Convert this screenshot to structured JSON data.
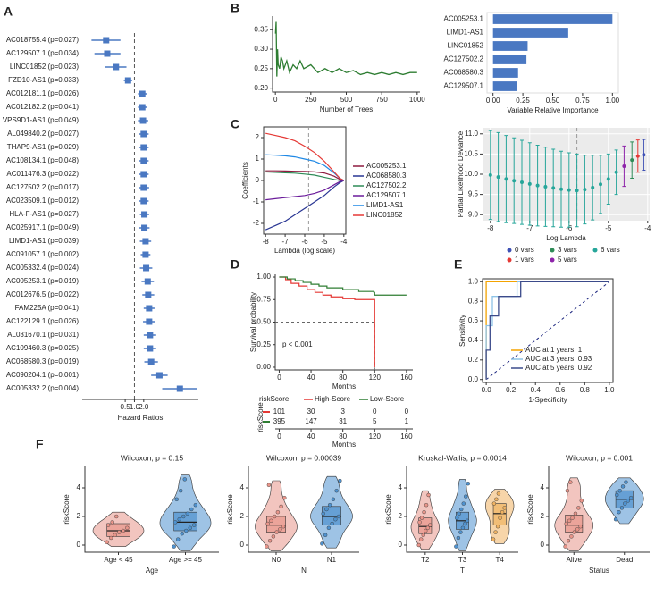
{
  "chart_data": [
    {
      "type": "forest",
      "panel": "A",
      "categories": [
        "AC018755.4 (p=0.027)",
        "AC129507.1 (p=0.034)",
        "LINC01852 (p=0.023)",
        "FZD10-AS1 (p=0.033)",
        "AC012181.1 (p=0.026)",
        "AC012182.2 (p=0.041)",
        "VPS9D1-AS1 (p=0.049)",
        "AL049840.2 (p=0.027)",
        "THAP9-AS1 (p=0.029)",
        "AC108134.1 (p=0.048)",
        "AC011476.3 (p=0.022)",
        "AC127502.2 (p=0.017)",
        "AC023509.1 (p=0.012)",
        "HLA-F-AS1 (p=0.027)",
        "AC025917.1 (p=0.049)",
        "LIMD1-AS1 (p=0.039)",
        "AC091057.1 (p=0.002)",
        "AC005332.4 (p=0.024)",
        "AC005253.1 (p=0.019)",
        "AC012676.5 (p=0.022)",
        "FAM225A (p=0.041)",
        "AC122129.1 (p=0.026)",
        "AL031670.1 (p=0.031)",
        "AC109460.3 (p=0.025)",
        "AC068580.3 (p=0.019)",
        "AC090204.1 (p=0.001)",
        "AC005332.2 (p=0.004)"
      ],
      "values": [
        0.12,
        0.13,
        0.25,
        0.62,
        1.8,
        1.8,
        1.9,
        2.0,
        2.0,
        2.0,
        2.0,
        2.0,
        2.0,
        2.1,
        2.1,
        2.3,
        2.3,
        2.4,
        2.7,
        2.8,
        3.0,
        3.0,
        3.2,
        3.2,
        3.5,
        6.5,
        30
      ],
      "lower": [
        0.04,
        0.05,
        0.11,
        0.45,
        1.3,
        1.3,
        1.3,
        1.4,
        1.4,
        1.4,
        1.4,
        1.4,
        1.4,
        1.5,
        1.4,
        1.5,
        1.6,
        1.5,
        1.7,
        1.8,
        2.0,
        1.9,
        2.0,
        2.0,
        2.1,
        3.5,
        8
      ],
      "upper": [
        0.35,
        0.35,
        0.55,
        0.85,
        2.5,
        2.5,
        2.8,
        2.9,
        2.9,
        2.9,
        2.9,
        3.0,
        2.9,
        3.0,
        3.1,
        3.5,
        3.3,
        3.8,
        4.3,
        4.4,
        4.5,
        4.7,
        5.1,
        5.1,
        5.8,
        12,
        110
      ],
      "color": "#4a78c2",
      "reference": 1,
      "log_x": true,
      "xlim": [
        0.02,
        120
      ],
      "xticks": [
        0.5,
        {
          "value": 1,
          "label": "1.0"
        },
        {
          "value": 2,
          "label": "2.0"
        }
      ],
      "xlabel": "Hazard Ratios"
    },
    {
      "type": "line",
      "panel": "B",
      "x": [
        1,
        5,
        10,
        15,
        20,
        30,
        40,
        50,
        60,
        80,
        100,
        125,
        150,
        175,
        200,
        250,
        300,
        350,
        400,
        450,
        500,
        550,
        600,
        650,
        700,
        750,
        800,
        850,
        900,
        950,
        1000
      ],
      "series": [
        {
          "color": "#2e7d32",
          "values": [
            0.34,
            0.37,
            0.23,
            0.3,
            0.26,
            0.25,
            0.28,
            0.27,
            0.25,
            0.27,
            0.24,
            0.26,
            0.25,
            0.27,
            0.25,
            0.26,
            0.24,
            0.25,
            0.24,
            0.25,
            0.24,
            0.245,
            0.235,
            0.24,
            0.235,
            0.24,
            0.235,
            0.24,
            0.235,
            0.24,
            0.24
          ]
        }
      ],
      "xlim": [
        -20,
        1020
      ],
      "xticks": [
        0,
        250,
        500,
        750,
        1000
      ],
      "ylim": [
        0.19,
        0.385
      ],
      "yticks": [
        {
          "value": 0.2,
          "label": "0.20"
        },
        0.25,
        {
          "value": 0.3,
          "label": "0.30"
        },
        0.35
      ],
      "xlabel": "Number of Trees"
    },
    {
      "type": "barh",
      "categories": [
        "AC005253.1",
        "LIMD1-AS1",
        "LINC01852",
        "AC127502.2",
        "AC068580.3",
        "AC129507.1"
      ],
      "values": [
        1.0,
        0.63,
        0.29,
        0.28,
        0.21,
        0.2
      ],
      "color": "#4a78c2",
      "xlim": [
        -0.05,
        1.05
      ],
      "xticks": [
        {
          "value": 0,
          "label": "0.00"
        },
        0.25,
        {
          "value": 0.5,
          "label": "0.50"
        },
        0.75,
        {
          "value": 1,
          "label": "1.00"
        }
      ],
      "xlabel": "Variable Relative Importance"
    },
    {
      "type": "multiline",
      "panel": "C",
      "x": [
        -8,
        -7.5,
        -7,
        -6.5,
        -6,
        -5.5,
        -5,
        -4.5,
        -4.2,
        -4
      ],
      "series": [
        {
          "name": "AC005253.1",
          "color": "#8e1b3f",
          "values": [
            0.45,
            0.45,
            0.44,
            0.43,
            0.42,
            0.4,
            0.35,
            0.2,
            0.05,
            0
          ]
        },
        {
          "name": "AC068580.3",
          "color": "#283593",
          "values": [
            -2.3,
            -2.1,
            -1.9,
            -1.6,
            -1.3,
            -1.0,
            -0.7,
            -0.3,
            -0.1,
            0
          ]
        },
        {
          "name": "AC127502.2",
          "color": "#2e8b57",
          "values": [
            0.4,
            0.38,
            0.36,
            0.34,
            0.3,
            0.25,
            0.15,
            0.05,
            0,
            0
          ]
        },
        {
          "name": "AC129507.1",
          "color": "#6a1b9a",
          "values": [
            -0.9,
            -0.85,
            -0.8,
            -0.75,
            -0.7,
            -0.6,
            -0.45,
            -0.2,
            -0.05,
            0
          ]
        },
        {
          "name": "LIMD1-AS1",
          "color": "#1e88e5",
          "values": [
            1.2,
            1.18,
            1.15,
            1.1,
            1.0,
            0.9,
            0.7,
            0.35,
            0.1,
            0
          ]
        },
        {
          "name": "LINC01852",
          "color": "#e53935",
          "values": [
            2.2,
            2.1,
            2.0,
            1.85,
            1.6,
            1.3,
            0.9,
            0.4,
            0.1,
            0
          ]
        }
      ],
      "vline": -5.8,
      "xlim": [
        -8.1,
        -3.9
      ],
      "xticks": [
        -8,
        -7,
        -6,
        -5,
        -4
      ],
      "ylim": [
        -2.5,
        2.5
      ],
      "yticks": [
        -2,
        -1,
        0,
        1,
        2
      ],
      "xlabel": "Lambda (log scale)",
      "ylabel": "Coefficients"
    },
    {
      "type": "errorbar",
      "series": [
        {
          "name": "0 vars",
          "color": "#3f51b5",
          "x": [
            -4.1
          ],
          "values": [
            10.48
          ],
          "errors": [
            0.38
          ]
        },
        {
          "name": "3 vars",
          "color": "#2e8b57",
          "x": [
            -4.4
          ],
          "values": [
            10.35
          ],
          "errors": [
            0.45
          ]
        },
        {
          "name": "6 vars",
          "color": "#26a69a",
          "x": [
            -8,
            -7.8,
            -7.6,
            -7.4,
            -7.2,
            -7,
            -6.8,
            -6.6,
            -6.4,
            -6.2,
            -6,
            -5.8,
            -5.6,
            -5.4,
            -5.2,
            -5,
            -4.8
          ],
          "values": [
            9.98,
            9.93,
            9.88,
            9.84,
            9.8,
            9.76,
            9.72,
            9.69,
            9.66,
            9.63,
            9.61,
            9.6,
            9.62,
            9.67,
            9.75,
            9.88,
            10.05
          ],
          "errors": [
            1.1,
            1.1,
            1.08,
            1.06,
            1.04,
            1.02,
            1.0,
            0.98,
            0.96,
            0.94,
            0.92,
            0.9,
            0.85,
            0.8,
            0.72,
            0.62,
            0.55
          ]
        },
        {
          "name": "1 vars",
          "color": "#e53935",
          "x": [
            -4.25
          ],
          "values": [
            10.45
          ],
          "errors": [
            0.4
          ]
        },
        {
          "name": "5 vars",
          "color": "#8e24aa",
          "x": [
            -4.6
          ],
          "values": [
            10.2
          ],
          "errors": [
            0.5
          ]
        }
      ],
      "vline": -5.8,
      "xlim": [
        -8.2,
        -3.95
      ],
      "xticks": [
        -8,
        -7,
        -6,
        -5,
        -4
      ],
      "ylim": [
        8.85,
        11.15
      ],
      "yticks": [
        {
          "value": 9,
          "label": "9.0"
        },
        9.5,
        {
          "value": 10,
          "label": "10.0"
        },
        10.5,
        {
          "value": 11,
          "label": "11.0"
        }
      ],
      "xlabel": "Log Lambda",
      "ylabel": "Partial Likelihood Deviance"
    },
    {
      "type": "survival",
      "panel": "D",
      "series": [
        {
          "name": "High-Score",
          "color": "#e53935",
          "x": [
            0,
            8,
            15,
            25,
            35,
            45,
            55,
            65,
            80,
            95,
            119,
            120
          ],
          "values": [
            1,
            0.97,
            0.93,
            0.9,
            0.86,
            0.83,
            0.8,
            0.78,
            0.76,
            0.75,
            0.75,
            0
          ],
          "at_risk": [
            101,
            30,
            3,
            0,
            0
          ]
        },
        {
          "name": "Low-Score",
          "color": "#2e7d32",
          "x": [
            0,
            10,
            20,
            30,
            40,
            50,
            60,
            80,
            100,
            119,
            120,
            160
          ],
          "values": [
            1,
            0.98,
            0.96,
            0.94,
            0.92,
            0.9,
            0.88,
            0.86,
            0.84,
            0.83,
            0.8,
            0.8
          ],
          "at_risk": [
            395,
            147,
            31,
            5,
            1
          ]
        }
      ],
      "xlim": [
        -5,
        168
      ],
      "xticks": [
        0,
        40,
        80,
        120,
        160
      ],
      "ylim": [
        -0.03,
        1.03
      ],
      "yticks": [
        {
          "value": 0,
          "label": "0.00"
        },
        0.25,
        {
          "value": 0.5,
          "label": "0.50"
        },
        0.75,
        {
          "value": 1,
          "label": "1.00"
        }
      ],
      "xlabel": "Months",
      "ylabel": "Survival probability",
      "annotation": "p < 0.001",
      "legend_title": "riskScore",
      "table_ylabel": "riskScore",
      "table_xlabel": "Months"
    },
    {
      "type": "roc",
      "panel": "E",
      "series": [
        {
          "name": "AUC at 1 years: 1",
          "color": "#f4a300",
          "x": [
            0,
            0,
            1
          ],
          "values": [
            0,
            1,
            1
          ]
        },
        {
          "name": "AUC at 3 years: 0.93",
          "color": "#8ec3e6",
          "x": [
            0,
            0,
            0.05,
            0.05,
            0.25,
            0.25,
            1
          ],
          "values": [
            0,
            0.55,
            0.55,
            0.85,
            0.85,
            1,
            1
          ]
        },
        {
          "name": "AUC at 5 years: 0.92",
          "color": "#3b4a8a",
          "x": [
            0,
            0,
            0.03,
            0.03,
            0.1,
            0.1,
            0.28,
            0.28,
            1
          ],
          "values": [
            0,
            0.3,
            0.3,
            0.65,
            0.65,
            0.85,
            0.85,
            1,
            1
          ]
        }
      ],
      "xlim": [
        -0.03,
        1.03
      ],
      "ylim": [
        -0.03,
        1.03
      ],
      "xticks": [
        {
          "value": 0,
          "label": "0.0"
        },
        0.2,
        0.4,
        0.6,
        0.8,
        {
          "value": 1,
          "label": "1.0"
        }
      ],
      "yticks": [
        {
          "value": 0,
          "label": "0.0"
        },
        0.2,
        0.4,
        0.6,
        0.8,
        {
          "value": 1,
          "label": "1.0"
        }
      ],
      "xlabel": "1-Specificity",
      "ylabel": "Sensitivity"
    },
    {
      "type": "violin",
      "panel": "F",
      "title": "Wilcoxon, p = 0.15",
      "categories": [
        "Age < 45",
        "Age >= 45"
      ],
      "colors": [
        "#e8958a",
        "#4f92cf"
      ],
      "points": [
        [
          0.2,
          0.5,
          0.7,
          0.9,
          1.0,
          1.2,
          1.4,
          1.6,
          2.0
        ],
        [
          -0.1,
          0.4,
          0.8,
          1.0,
          1.2,
          1.4,
          1.6,
          1.8,
          2.0,
          2.2,
          2.5,
          2.8,
          3.2,
          3.8,
          4.6
        ]
      ],
      "q1": [
        0.6,
        1.0
      ],
      "medians": [
        1.0,
        1.6
      ],
      "q3": [
        1.5,
        2.3
      ],
      "ylim": [
        -0.5,
        5.5
      ],
      "yticks": [
        0,
        2,
        4
      ],
      "xlabel": "Age",
      "ylabel": "riskScore"
    },
    {
      "type": "violin",
      "title": "Wilcoxon, p = 0.00039",
      "categories": [
        "N0",
        "N1"
      ],
      "colors": [
        "#e8958a",
        "#4f92cf"
      ],
      "points": [
        [
          -0.1,
          0.3,
          0.6,
          0.9,
          1.1,
          1.3,
          1.5,
          1.7,
          2.0,
          2.3,
          2.7,
          3.3,
          4.2
        ],
        [
          0.1,
          0.7,
          1.2,
          1.5,
          1.8,
          2.0,
          2.2,
          2.5,
          2.8,
          3.2,
          3.8,
          4.5
        ]
      ],
      "q1": [
        0.9,
        1.4
      ],
      "medians": [
        1.4,
        2.0
      ],
      "q3": [
        2.0,
        2.7
      ],
      "ylim": [
        -0.5,
        5.5
      ],
      "yticks": [
        0,
        2,
        4
      ],
      "xlabel": "N",
      "ylabel": "riskScore"
    },
    {
      "type": "violin",
      "title": "Kruskal-Wallis, p = 0.0014",
      "categories": [
        "T2",
        "T3",
        "T4"
      ],
      "colors": [
        "#e8958a",
        "#4f92cf",
        "#f0b363"
      ],
      "points": [
        [
          0,
          0.4,
          0.7,
          1.0,
          1.2,
          1.4,
          1.6,
          1.9,
          2.3,
          2.8,
          3.5
        ],
        [
          -0.1,
          0.5,
          0.9,
          1.2,
          1.5,
          1.7,
          1.9,
          2.2,
          2.5,
          2.9,
          3.4,
          4.3
        ],
        [
          0.4,
          0.9,
          1.3,
          1.9,
          2.3,
          2.6,
          2.9,
          3.2,
          3.6
        ]
      ],
      "q1": [
        0.8,
        1.1,
        1.4
      ],
      "medians": [
        1.3,
        1.7,
        2.2
      ],
      "q3": [
        1.9,
        2.3,
        2.9
      ],
      "ylim": [
        -0.5,
        5.5
      ],
      "yticks": [
        0,
        2,
        4
      ],
      "xlabel": "T",
      "ylabel": "riskScore"
    },
    {
      "type": "violin",
      "title": "Wilcoxon, p = 0.001",
      "categories": [
        "Alive",
        "Dead"
      ],
      "colors": [
        "#e8958a",
        "#4f92cf"
      ],
      "points": [
        [
          -0.1,
          0.3,
          0.6,
          0.9,
          1.1,
          1.3,
          1.5,
          1.7,
          1.9,
          2.2,
          2.6,
          3.1,
          3.8,
          4.4
        ],
        [
          1.8,
          2.3,
          2.6,
          2.9,
          3.1,
          3.3,
          3.5,
          3.8,
          4.1,
          4.4
        ]
      ],
      "q1": [
        0.9,
        2.6
      ],
      "medians": [
        1.4,
        3.2
      ],
      "q3": [
        2.1,
        3.8
      ],
      "ylim": [
        -0.5,
        5.5
      ],
      "yticks": [
        0,
        2,
        4
      ],
      "xlabel": "Status",
      "ylabel": "riskScore"
    }
  ]
}
